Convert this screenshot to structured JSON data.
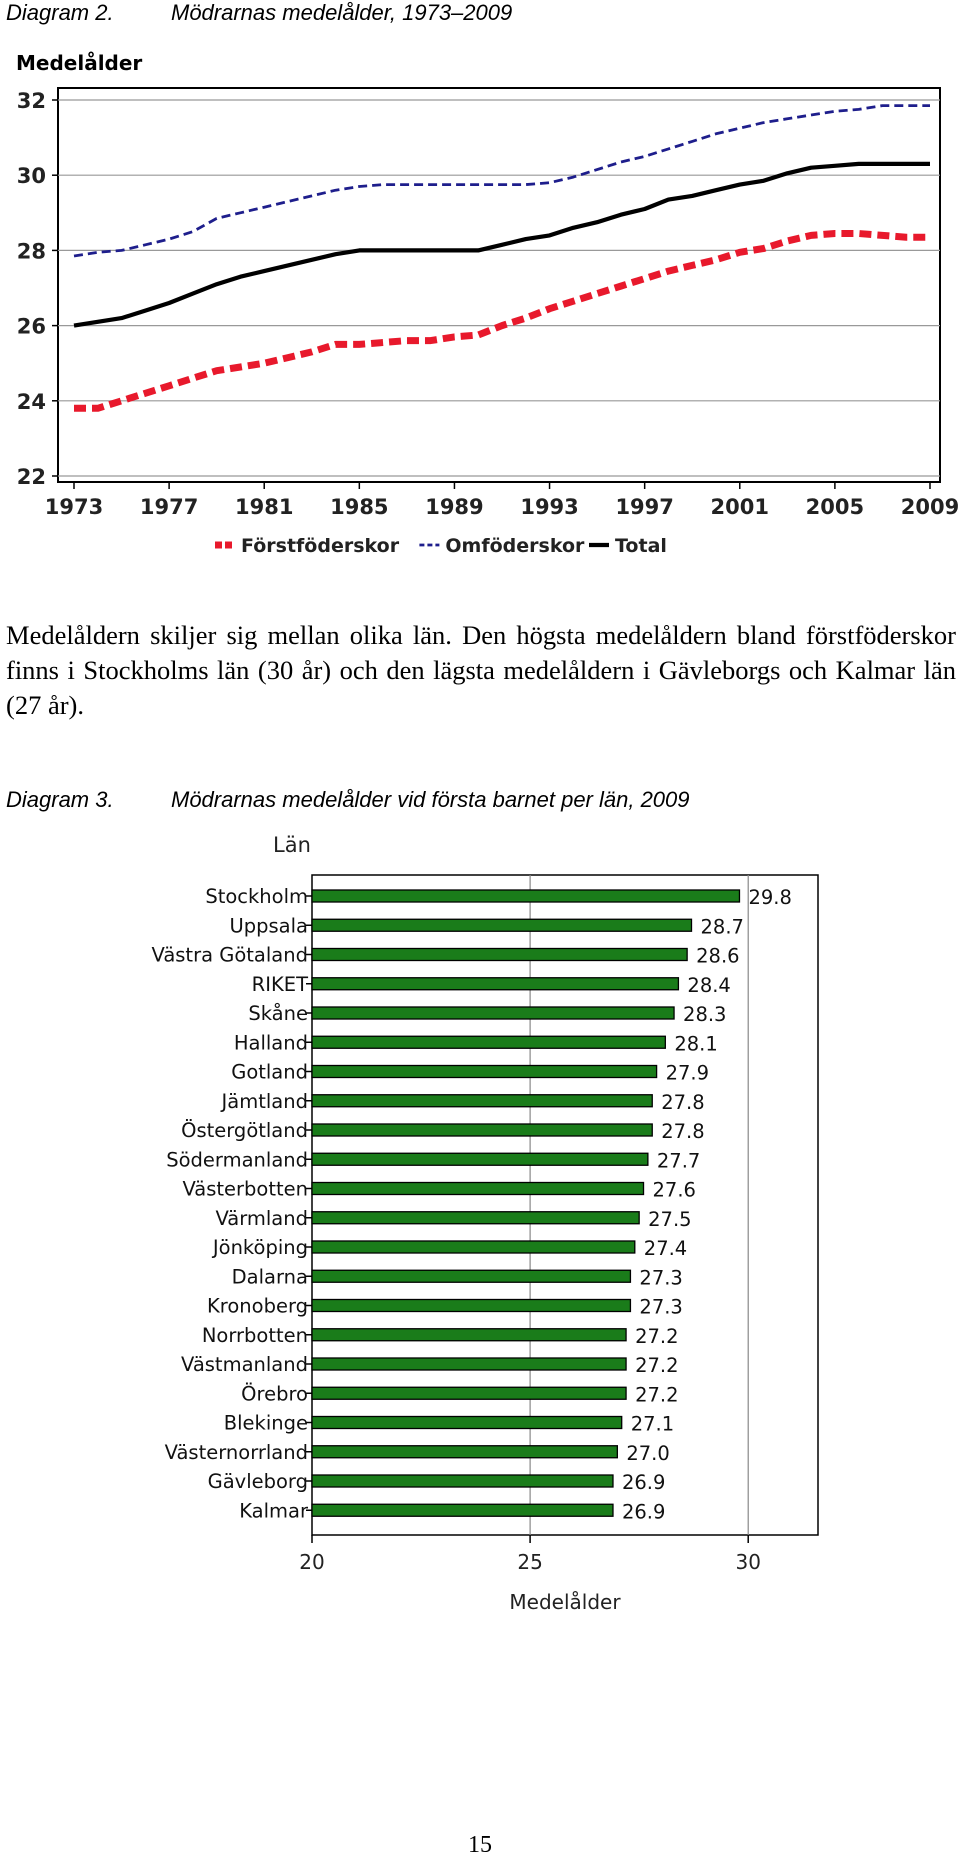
{
  "captions": [
    {
      "number": "Diagram 2.",
      "text": "Mödrarnas medelålder, 1973–2009"
    },
    {
      "number": "Diagram 3.",
      "text": "Mödrarnas medelålder vid första barnet per län, 2009"
    }
  ],
  "paragraph": "Medelåldern skiljer sig mellan olika län. Den högsta medelåldern bland förstföderskor finns i Stockholms län (30 år) och den lägsta medelåldern i Gävleborgs och Kalmar län (27 år).",
  "page_number": "15",
  "chart_data": [
    {
      "type": "line",
      "ylabel": "Medelålder",
      "ylim": [
        22,
        32
      ],
      "yticks": [
        22,
        24,
        26,
        28,
        30,
        32
      ],
      "xlim": [
        1973,
        2009
      ],
      "xticks": [
        1973,
        1977,
        1981,
        1985,
        1989,
        1993,
        1997,
        2001,
        2005,
        2009
      ],
      "grid": "horizontal",
      "legend": "bottom",
      "x": [
        1973,
        1974,
        1975,
        1976,
        1977,
        1978,
        1979,
        1980,
        1981,
        1982,
        1983,
        1984,
        1985,
        1986,
        1987,
        1988,
        1989,
        1990,
        1991,
        1992,
        1993,
        1994,
        1995,
        1996,
        1997,
        1998,
        1999,
        2000,
        2001,
        2002,
        2003,
        2004,
        2005,
        2006,
        2007,
        2008,
        2009
      ],
      "series": [
        {
          "name": "Förstföderskor",
          "color": "#e8192c",
          "style": "thick-dashed",
          "values": [
            23.8,
            23.8,
            24.0,
            24.2,
            24.4,
            24.6,
            24.8,
            24.9,
            25.0,
            25.15,
            25.3,
            25.5,
            25.5,
            25.55,
            25.6,
            25.6,
            25.7,
            25.75,
            26.0,
            26.2,
            26.45,
            26.65,
            26.85,
            27.05,
            27.25,
            27.45,
            27.6,
            27.75,
            27.95,
            28.05,
            28.25,
            28.4,
            28.45,
            28.45,
            28.4,
            28.35,
            28.35
          ]
        },
        {
          "name": "Omföderskor",
          "color": "#1e1e8c",
          "style": "thin-dashed",
          "values": [
            27.85,
            27.95,
            28.0,
            28.15,
            28.3,
            28.5,
            28.85,
            29.0,
            29.15,
            29.3,
            29.45,
            29.6,
            29.7,
            29.75,
            29.75,
            29.75,
            29.75,
            29.75,
            29.75,
            29.75,
            29.8,
            29.95,
            30.15,
            30.35,
            30.5,
            30.7,
            30.9,
            31.1,
            31.25,
            31.4,
            31.5,
            31.6,
            31.7,
            31.75,
            31.85,
            31.85,
            31.85
          ]
        },
        {
          "name": "Total",
          "color": "#000000",
          "style": "solid",
          "values": [
            26.0,
            26.1,
            26.2,
            26.4,
            26.6,
            26.85,
            27.1,
            27.3,
            27.45,
            27.6,
            27.75,
            27.9,
            28.0,
            28.0,
            28.0,
            28.0,
            28.0,
            28.0,
            28.15,
            28.3,
            28.4,
            28.6,
            28.75,
            28.95,
            29.1,
            29.35,
            29.45,
            29.6,
            29.75,
            29.85,
            30.05,
            30.2,
            30.25,
            30.3,
            30.3,
            30.3,
            30.3
          ]
        }
      ]
    },
    {
      "type": "bar",
      "orientation": "horizontal",
      "title": "Län",
      "xlabel": "Medelålder",
      "xlim": [
        20,
        31.6
      ],
      "xticks": [
        20,
        25,
        30
      ],
      "bar_color": "#1a7c1a",
      "categories": [
        "Stockholm",
        "Uppsala",
        "Västra Götaland",
        "RIKET",
        "Skåne",
        "Halland",
        "Gotland",
        "Jämtland",
        "Östergötland",
        "Södermanland",
        "Västerbotten",
        "Värmland",
        "Jönköping",
        "Dalarna",
        "Kronoberg",
        "Norrbotten",
        "Västmanland",
        "Örebro",
        "Blekinge",
        "Västernorrland",
        "Gävleborg",
        "Kalmar"
      ],
      "values": [
        29.8,
        28.7,
        28.6,
        28.4,
        28.3,
        28.1,
        27.9,
        27.8,
        27.8,
        27.7,
        27.6,
        27.5,
        27.4,
        27.3,
        27.3,
        27.2,
        27.2,
        27.2,
        27.1,
        27.0,
        26.9,
        26.9
      ],
      "value_labels": [
        "29.8",
        "28.7",
        "28.6",
        "28.4",
        "28.3",
        "28.1",
        "27.9",
        "27.8",
        "27.8",
        "27.7",
        "27.6",
        "27.5",
        "27.4",
        "27.3",
        "27.3",
        "27.2",
        "27.2",
        "27.2",
        "27.1",
        "27.0",
        "26.9",
        "26.9"
      ]
    }
  ]
}
